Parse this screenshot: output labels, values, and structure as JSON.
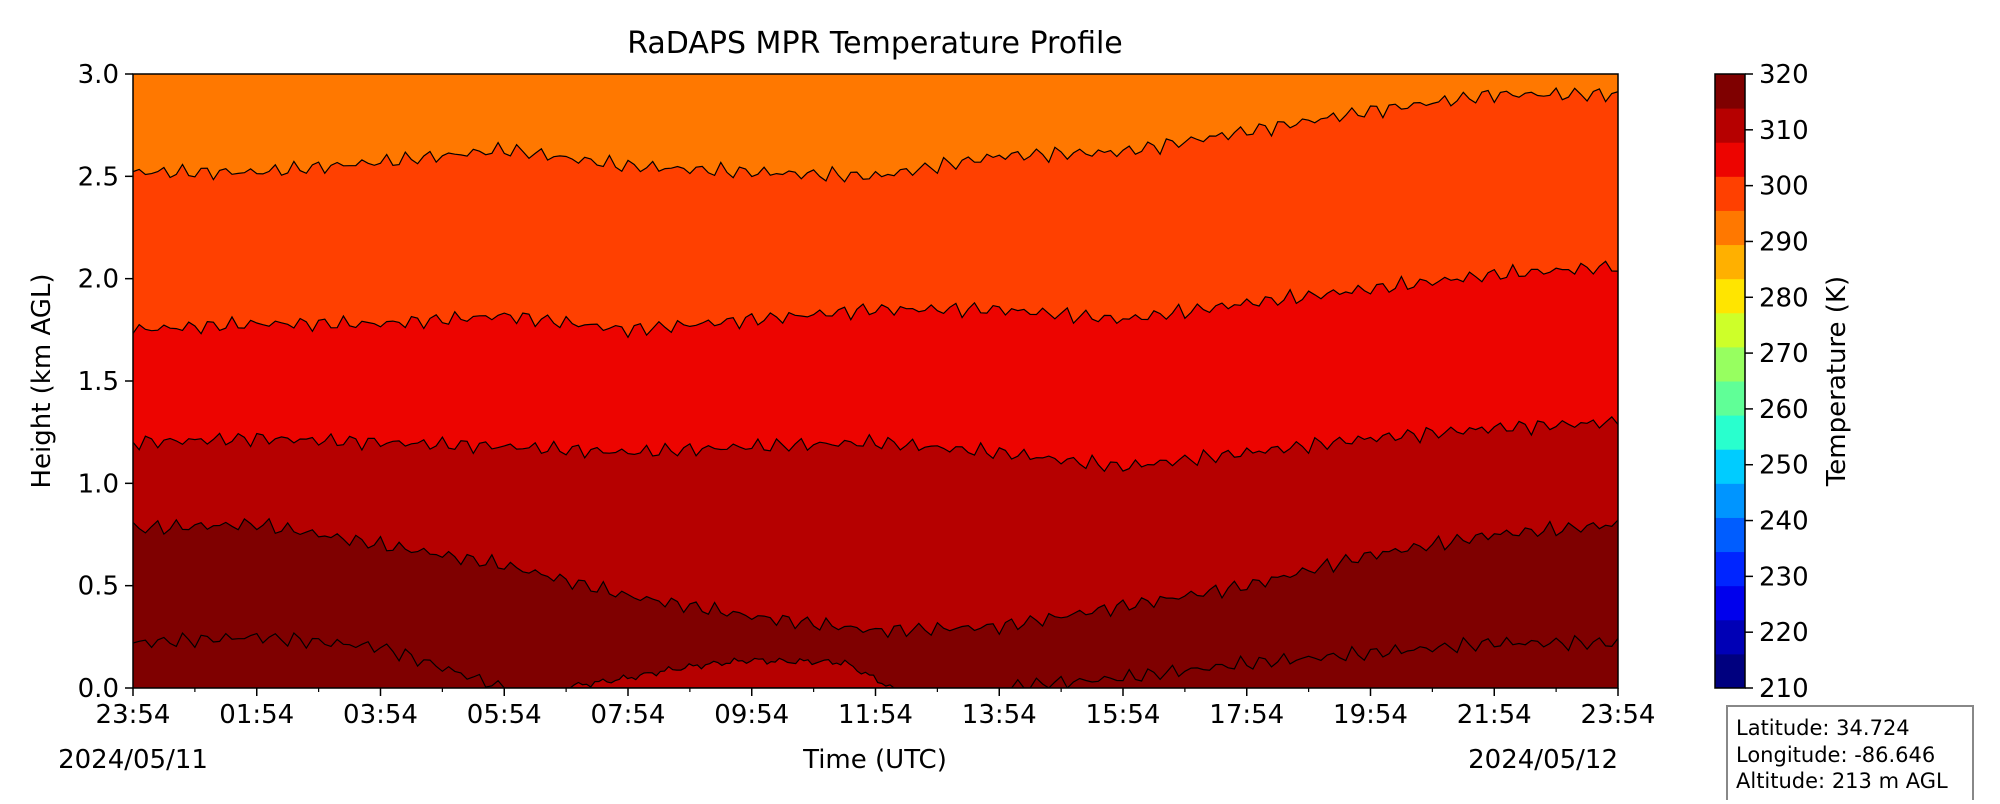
{
  "chart_data": {
    "type": "filled-contour",
    "title": "RaDAPS MPR Temperature Profile",
    "xlabel": "Time (UTC)",
    "ylabel": "Height (km AGL)",
    "ylim": [
      0.0,
      3.0
    ],
    "x_ticks": [
      "23:54",
      "01:54",
      "03:54",
      "05:54",
      "07:54",
      "09:54",
      "11:54",
      "13:54",
      "15:54",
      "17:54",
      "19:54",
      "21:54",
      "23:54"
    ],
    "y_ticks": [
      "0.0",
      "0.5",
      "1.0",
      "1.5",
      "2.0",
      "2.5",
      "3.0"
    ],
    "start_date": "2024/05/11",
    "end_date": "2024/05/12",
    "colorbar": {
      "label": "Temperature (K)",
      "range": [
        210,
        320
      ],
      "step": 5,
      "tick_labels": [
        "210",
        "220",
        "230",
        "240",
        "250",
        "260",
        "270",
        "280",
        "290",
        "300",
        "310",
        "320"
      ],
      "colors": [
        "#00007f",
        "#0000b6",
        "#0000ed",
        "#0025ff",
        "#005dff",
        "#0095ff",
        "#00ccff",
        "#29ffce",
        "#60ff97",
        "#97ff60",
        "#ceff29",
        "#ffe500",
        "#ffb000",
        "#ff7800",
        "#ff4000",
        "#ed0400",
        "#b60000",
        "#7f0000"
      ]
    },
    "contour_lines_K": [
      {
        "level": 300,
        "times_h": [
          0,
          2,
          4,
          6,
          8,
          10,
          12,
          14,
          16,
          18,
          20,
          22,
          24
        ],
        "height_km": [
          0.22,
          0.25,
          0.2,
          0.0,
          0.0,
          0.0,
          0.0,
          0.0,
          0.05,
          0.12,
          0.17,
          0.22,
          0.22
        ]
      },
      {
        "level": 295,
        "times_h": [
          0,
          2,
          4,
          6,
          8,
          10,
          12,
          14,
          16,
          18,
          20,
          22,
          24
        ],
        "height_km": [
          0.78,
          0.8,
          0.7,
          0.6,
          0.45,
          0.35,
          0.28,
          0.3,
          0.4,
          0.5,
          0.65,
          0.75,
          0.8
        ]
      },
      {
        "level": 290,
        "times_h": [
          0,
          2,
          4,
          6,
          8,
          10,
          12,
          14,
          16,
          18,
          20,
          22,
          24
        ],
        "height_km": [
          1.2,
          1.22,
          1.2,
          1.18,
          1.15,
          1.18,
          1.2,
          1.15,
          1.08,
          1.15,
          1.22,
          1.27,
          1.3
        ]
      },
      {
        "level": 285,
        "times_h": [
          0,
          2,
          4,
          6,
          8,
          10,
          12,
          14,
          16,
          18,
          20,
          22,
          24
        ],
        "height_km": [
          1.75,
          1.78,
          1.78,
          1.82,
          1.75,
          1.8,
          1.85,
          1.85,
          1.8,
          1.88,
          1.95,
          2.02,
          2.06
        ]
      },
      {
        "level": 280,
        "times_h": [
          0,
          2,
          4,
          6,
          8,
          10,
          12,
          14,
          16,
          18,
          20,
          22,
          24
        ],
        "height_km": [
          2.52,
          2.52,
          2.57,
          2.63,
          2.55,
          2.52,
          2.5,
          2.6,
          2.62,
          2.72,
          2.82,
          2.9,
          2.9
        ]
      }
    ],
    "warm_core_region": {
      "level": 295,
      "times_h": [
        7.0,
        8.5,
        10.0,
        11.5,
        12.3
      ],
      "height_km": [
        0.0,
        0.08,
        0.14,
        0.12,
        0.0
      ]
    },
    "station_info": [
      "Latitude: 34.724",
      "Longitude: -86.646",
      "Altitude: 213 m AGL"
    ]
  }
}
